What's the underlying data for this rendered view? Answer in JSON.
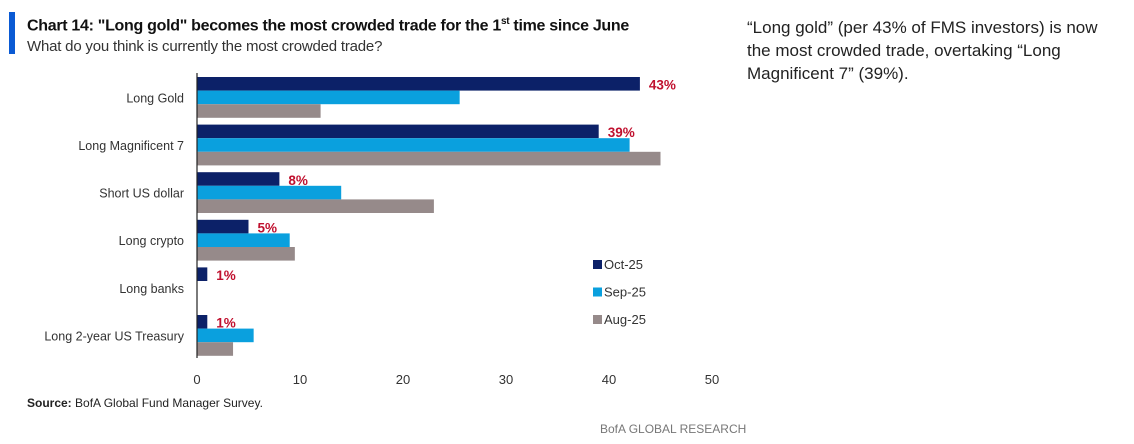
{
  "header": {
    "title_pre": "Chart 14: \"Long gold\" becomes the most crowded trade for the 1",
    "title_sup": "st",
    "title_post": " time since June",
    "subtitle": "What do you think is currently the most crowded trade?"
  },
  "note": "“Long gold” (per 43% of FMS investors) is now the most crowded trade, overtaking “Long Magnificent 7” (39%).",
  "footer": {
    "source_label": "Source:",
    "source_text": " BofA Global Fund Manager Survey.",
    "brand": "BofA GLOBAL RESEARCH"
  },
  "chart_data": {
    "type": "bar",
    "orientation": "horizontal",
    "categories": [
      "Long Gold",
      "Long Magnificent 7",
      "Short US dollar",
      "Long crypto",
      "Long banks",
      "Long 2-year US Treasury"
    ],
    "series": [
      {
        "name": "Oct-25",
        "color": "#0c2168",
        "values": [
          43,
          39,
          8,
          5,
          1,
          1
        ]
      },
      {
        "name": "Sep-25",
        "color": "#0aa0de",
        "values": [
          25.5,
          42,
          14,
          9,
          0,
          5.5
        ]
      },
      {
        "name": "Aug-25",
        "color": "#968a8a",
        "values": [
          12,
          45,
          23,
          9.5,
          0,
          3.5
        ]
      }
    ],
    "data_labels": [
      "43%",
      "39%",
      "8%",
      "5%",
      "1%",
      "1%"
    ],
    "data_label_color": "#c0102e",
    "xlim": [
      0,
      50
    ],
    "xticks": [
      0,
      10,
      20,
      30,
      40,
      50
    ],
    "grid": false,
    "legend": "bottom-right"
  }
}
